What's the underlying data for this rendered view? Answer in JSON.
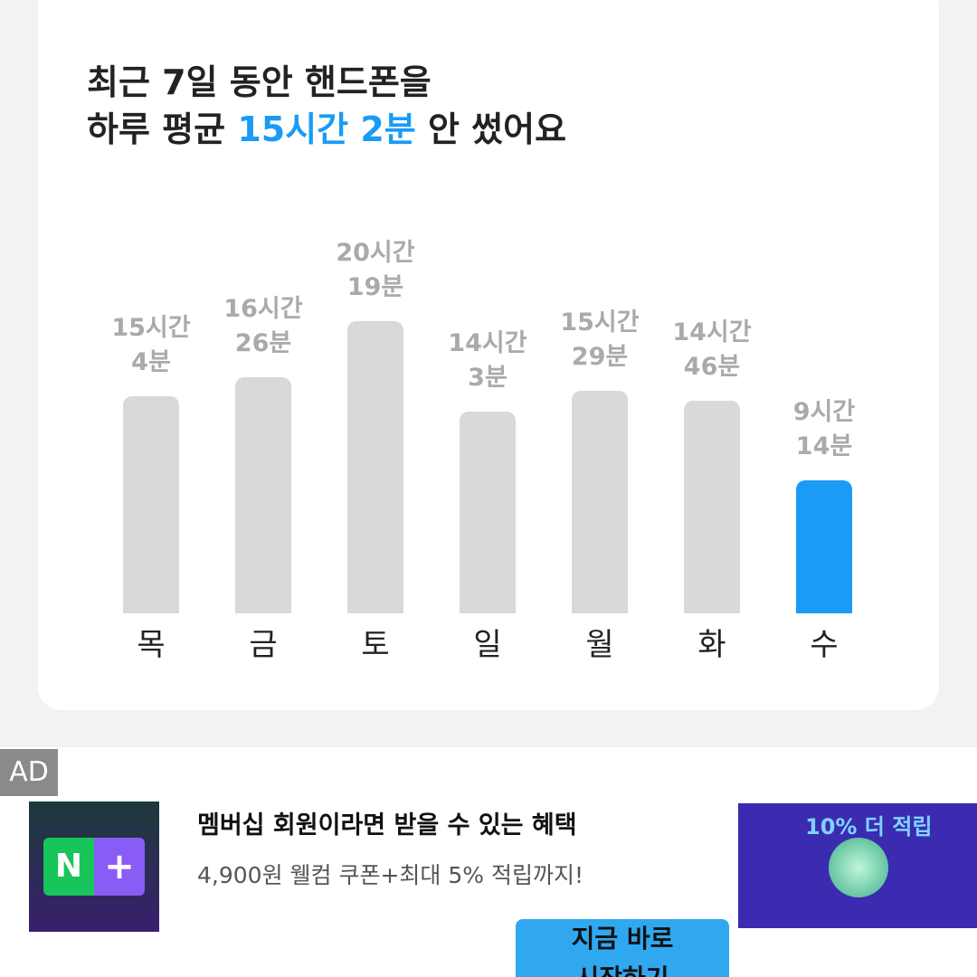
{
  "chart_data": {
    "type": "bar",
    "title_parts": [
      "최근 7일 동안 핸드폰을",
      "하루 평균",
      "15시간 2분",
      "안 썼어요"
    ],
    "categories": [
      "목",
      "금",
      "토",
      "일",
      "월",
      "화",
      "수"
    ],
    "values": [
      904,
      986,
      1219,
      843,
      929,
      886,
      554
    ],
    "value_labels": [
      "15시간\n4분",
      "16시간\n26분",
      "20시간\n19분",
      "14시간\n3분",
      "15시간\n29분",
      "14시간\n46분",
      "9시간\n14분"
    ],
    "colors": [
      "#d9d9d9",
      "#d9d9d9",
      "#d9d9d9",
      "#d9d9d9",
      "#d9d9d9",
      "#d9d9d9",
      "#1a9bf5"
    ],
    "highlight_color": "#1a9bf5"
  },
  "ad": {
    "badge": "AD",
    "title": "멤버십 회원이라면 받을 수 있는 혜택",
    "subtitle": "4,900원 웰컴 쿠폰+최대 5% 적립까지!",
    "button": "지금 바로\n시작하기",
    "banner_text": "10% 더 적립"
  }
}
